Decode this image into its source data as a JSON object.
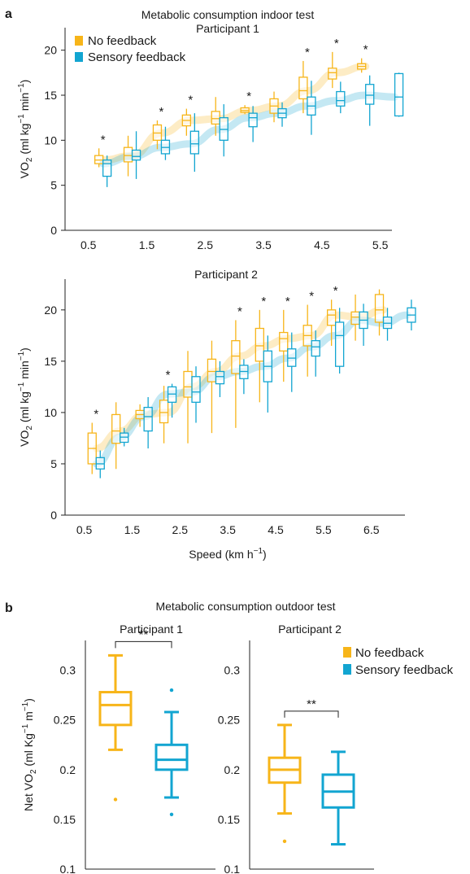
{
  "colors": {
    "no_feedback": "#f7b519",
    "sensory": "#12a5d1",
    "axis": "#222222"
  },
  "chart_data": [
    {
      "panel": "a",
      "type": "box",
      "title": "Metabolic consumption indoor test",
      "subtitle": "Participant 1",
      "ylabel": "VO2 (ml kg−1 min−1)",
      "xlabel": "",
      "ylim": [
        0,
        22.5
      ],
      "yticks": [
        0,
        5,
        10,
        15,
        20
      ],
      "xlim": [
        0.1,
        5.7
      ],
      "xticks": [
        "0.5",
        "1.5",
        "2.5",
        "3.5",
        "4.5",
        "5.5"
      ],
      "legend": [
        "No feedback",
        "Sensory feedback"
      ],
      "legend_position": "top-left",
      "significance_x": [
        0.75,
        1.75,
        2.25,
        3.25,
        4.25,
        4.75,
        5.25
      ],
      "series": [
        {
          "name": "No feedback",
          "x": [
            0.75,
            1.25,
            1.75,
            2.25,
            2.75,
            3.25,
            3.75,
            4.25,
            4.75,
            5.25
          ],
          "boxes": [
            [
              7.0,
              7.4,
              7.8,
              8.3,
              9.1
            ],
            [
              6.0,
              7.6,
              8.3,
              9.2,
              10.5
            ],
            [
              9.0,
              10.0,
              10.8,
              11.7,
              12.2
            ],
            [
              10.5,
              11.6,
              12.2,
              12.8,
              13.5
            ],
            [
              10.5,
              11.8,
              12.4,
              13.2,
              14.8
            ],
            [
              12.9,
              13.1,
              13.3,
              13.6,
              13.9
            ],
            [
              12.0,
              13.0,
              13.8,
              14.6,
              15.4
            ],
            [
              13.0,
              14.6,
              15.5,
              17.0,
              18.8
            ],
            [
              15.8,
              16.8,
              17.5,
              18.0,
              19.8
            ],
            [
              17.5,
              17.9,
              18.2,
              18.5,
              19.1
            ]
          ],
          "trend": [
            7.8,
            8.3,
            10.8,
            12.2,
            12.4,
            13.3,
            13.8,
            15.5,
            17.5,
            18.2
          ]
        },
        {
          "name": "Sensory feedback",
          "x": [
            0.75,
            1.25,
            1.75,
            2.25,
            2.75,
            3.25,
            3.75,
            4.25,
            4.75,
            5.25,
            5.75
          ],
          "boxes": [
            [
              4.8,
              6.0,
              7.4,
              7.8,
              8.3
            ],
            [
              5.7,
              7.8,
              8.2,
              8.9,
              11.0
            ],
            [
              7.8,
              8.5,
              9.2,
              10.0,
              11.5
            ],
            [
              6.5,
              8.5,
              9.6,
              11.0,
              13.0
            ],
            [
              8.2,
              10.0,
              11.2,
              12.5,
              14.0
            ],
            [
              9.8,
              11.5,
              12.5,
              13.0,
              13.8
            ],
            [
              11.5,
              12.5,
              13.0,
              13.5,
              14.2
            ],
            [
              10.6,
              12.8,
              13.8,
              14.8,
              16.6
            ],
            [
              13.0,
              13.8,
              14.4,
              15.4,
              16.5
            ],
            [
              11.6,
              14.0,
              15.0,
              16.2,
              17.2
            ],
            [
              12.6,
              12.7,
              14.8,
              17.4,
              17.5
            ]
          ],
          "trend": [
            7.4,
            8.2,
            9.2,
            9.6,
            11.2,
            12.5,
            13.0,
            13.8,
            14.4,
            15.0,
            14.8
          ]
        }
      ]
    },
    {
      "panel": "a",
      "type": "box",
      "title": "",
      "subtitle": "Participant 2",
      "ylabel": "VO2 (ml kg−1 min−1)",
      "xlabel": "Speed (km h−1)",
      "ylim": [
        0,
        23
      ],
      "yticks": [
        0,
        5,
        10,
        15,
        20
      ],
      "xlim": [
        0.1,
        7.2
      ],
      "xticks": [
        "0.5",
        "1.5",
        "2.5",
        "3.5",
        "4.5",
        "5.5",
        "6.5"
      ],
      "legend": [],
      "significance_x": [
        0.75,
        2.25,
        3.75,
        4.25,
        4.75,
        5.25,
        5.75
      ],
      "series": [
        {
          "name": "No feedback",
          "x": [
            0.75,
            1.25,
            1.75,
            2.25,
            2.75,
            3.25,
            3.75,
            4.25,
            4.75,
            5.25,
            5.75,
            6.25,
            6.75
          ],
          "boxes": [
            [
              4.0,
              5.0,
              6.5,
              8.0,
              9.0
            ],
            [
              4.5,
              7.0,
              8.2,
              9.8,
              11.0
            ],
            [
              8.6,
              9.4,
              9.8,
              10.2,
              10.8
            ],
            [
              7.0,
              9.0,
              10.0,
              11.2,
              12.6
            ],
            [
              7.0,
              11.5,
              12.5,
              14.0,
              16.0
            ],
            [
              8.0,
              13.0,
              14.0,
              15.2,
              17.0
            ],
            [
              8.5,
              13.8,
              15.5,
              17.0,
              19.0
            ],
            [
              11.0,
              15.0,
              16.5,
              18.2,
              20.0
            ],
            [
              13.0,
              16.0,
              17.2,
              17.8,
              20.0
            ],
            [
              13.5,
              16.5,
              17.5,
              18.5,
              20.5
            ],
            [
              16.5,
              18.5,
              19.5,
              20.0,
              21.0
            ],
            [
              17.0,
              18.6,
              19.3,
              19.8,
              21.5
            ],
            [
              17.5,
              18.8,
              20.0,
              21.5,
              22.0
            ]
          ],
          "trend": [
            6.5,
            8.2,
            9.8,
            10.0,
            12.5,
            14.0,
            15.5,
            16.5,
            17.2,
            17.5,
            19.5,
            19.3,
            20.0
          ]
        },
        {
          "name": "Sensory feedback",
          "x": [
            0.75,
            1.25,
            1.75,
            2.25,
            2.75,
            3.25,
            3.75,
            4.25,
            4.75,
            5.25,
            5.75,
            6.25,
            6.75,
            7.25
          ],
          "boxes": [
            [
              3.6,
              4.5,
              5.0,
              5.6,
              6.3
            ],
            [
              6.7,
              7.1,
              7.6,
              8.0,
              8.5
            ],
            [
              6.5,
              8.2,
              9.6,
              10.5,
              11.5
            ],
            [
              9.5,
              11.0,
              11.8,
              12.5,
              12.8
            ],
            [
              9.0,
              11.0,
              12.0,
              13.5,
              14.5
            ],
            [
              11.5,
              12.8,
              13.5,
              14.0,
              15.0
            ],
            [
              11.8,
              13.3,
              14.0,
              14.6,
              15.2
            ],
            [
              10.0,
              13.0,
              14.5,
              16.0,
              17.5
            ],
            [
              12.0,
              14.5,
              15.3,
              16.2,
              17.8
            ],
            [
              13.5,
              15.5,
              16.4,
              17.0,
              18.0
            ],
            [
              13.8,
              14.5,
              17.5,
              18.8,
              20.2
            ],
            [
              16.5,
              18.2,
              19.0,
              19.8,
              20.6
            ],
            [
              17.0,
              18.2,
              18.7,
              19.3,
              20.2
            ],
            [
              18.0,
              18.8,
              19.5,
              20.2,
              21.0
            ]
          ],
          "trend": [
            5.0,
            7.6,
            9.6,
            11.8,
            12.0,
            13.5,
            14.0,
            14.5,
            15.3,
            16.4,
            17.5,
            19.0,
            18.7,
            19.5
          ]
        }
      ]
    },
    {
      "panel": "b",
      "type": "box",
      "title": "Metabolic consumption outdoor test",
      "subtitle": "Participant 1",
      "ylabel": "Net VO2 (ml Kg−1 m−1)",
      "ylim": [
        0.1,
        0.33
      ],
      "yticks": [
        "0.1",
        "0.15",
        "0.2",
        "0.25",
        "0.3"
      ],
      "significance": "**",
      "series": [
        {
          "name": "No feedback",
          "box": [
            0.22,
            0.245,
            0.265,
            0.278,
            0.315
          ],
          "outliers": [
            0.17
          ]
        },
        {
          "name": "Sensory feedback",
          "box": [
            0.172,
            0.2,
            0.21,
            0.225,
            0.258
          ],
          "outliers": [
            0.155,
            0.28
          ]
        }
      ]
    },
    {
      "panel": "b",
      "type": "box",
      "title": "",
      "subtitle": "Participant 2",
      "ylabel": "",
      "ylim": [
        0.1,
        0.33
      ],
      "yticks": [
        "0.1",
        "0.15",
        "0.2",
        "0.25",
        "0.3"
      ],
      "significance": "**",
      "legend": [
        "No feedback",
        "Sensory feedback"
      ],
      "legend_position": "top-right",
      "series": [
        {
          "name": "No feedback",
          "box": [
            0.156,
            0.187,
            0.2,
            0.212,
            0.245
          ],
          "outliers": [
            0.128
          ]
        },
        {
          "name": "Sensory feedback",
          "box": [
            0.125,
            0.162,
            0.178,
            0.195,
            0.218
          ],
          "outliers": []
        }
      ]
    }
  ],
  "labels": {
    "panel_a": "a",
    "panel_b": "b"
  }
}
